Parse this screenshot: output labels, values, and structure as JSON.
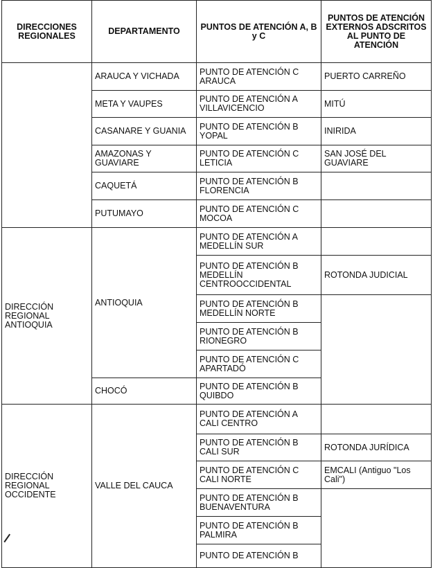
{
  "headers": {
    "regional": "DIRECCIONES REGIONALES",
    "departamento": "DEPARTAMENTO",
    "puntos": "PUNTOS DE ATENCIÓN A, B y C",
    "externos": "PUNTOS DE ATENCIÓN EXTERNOS ADSCRITOS AL PUNTO DE ATENCIÓN"
  },
  "section1": {
    "regional": "",
    "rows": [
      {
        "departamento": "ARAUCA Y VICHADA",
        "punto": "PUNTO DE ATENCIÓN C ARAUCA",
        "externo": "PUERTO CARREÑO"
      },
      {
        "departamento": "META Y VAUPES",
        "punto": "PUNTO DE ATENCIÓN A VILLAVICENCIO",
        "externo": "MITÚ"
      },
      {
        "departamento": "CASANARE Y GUANIA",
        "punto": "PUNTO DE ATENCIÓN B YOPAL",
        "externo": "INIRIDA"
      },
      {
        "departamento": "AMAZONAS Y GUAVIARE",
        "punto": "PUNTO DE ATENCIÓN C LETICIA",
        "externo": "SAN JOSÉ DEL GUAVIARE"
      },
      {
        "departamento": "CAQUETÁ",
        "punto": "PUNTO DE ATENCIÓN B FLORENCIA",
        "externo": ""
      },
      {
        "departamento": "PUTUMAYO",
        "punto": "PUNTO DE ATENCIÓN C MOCOA",
        "externo": ""
      }
    ]
  },
  "section2": {
    "regional": "DIRECCIÓN REGIONAL ANTIOQUIA",
    "departamentos": [
      "ANTIOQUIA",
      "CHOCÓ"
    ],
    "puntos": [
      "PUNTO DE ATENCIÓN A MEDELLÍN SUR",
      "PUNTO DE ATENCIÓN B MEDELLÍN CENTROOCCIDENTAL",
      "PUNTO DE ATENCIÓN B MEDELLÍN NORTE",
      "PUNTO DE ATENCIÓN B RIONEGRO",
      "PUNTO DE ATENCIÓN C APARTADÓ",
      "PUNTO DE ATENCIÓN B QUIBDO"
    ],
    "externos": [
      "",
      "ROTONDA JUDICIAL",
      ""
    ]
  },
  "section3": {
    "regional": "DIRECCIÓN REGIONAL OCCIDENTE",
    "departamento": "VALLE DEL CAUCA",
    "puntos": [
      "PUNTO DE ATENCIÓN A CALI CENTRO",
      "PUNTO DE ATENCIÓN B CALI SUR",
      "PUNTO DE ATENCIÓN C CALI NORTE",
      "PUNTO DE ATENCIÓN B BUENAVENTURA",
      "PUNTO DE ATENCIÓN B PALMIRA",
      "PUNTO DE ATENCIÓN B"
    ],
    "externos": [
      "",
      "ROTONDA JURÍDICA",
      "EMCALI (Antiguo \"Los Cali\")",
      ""
    ]
  }
}
